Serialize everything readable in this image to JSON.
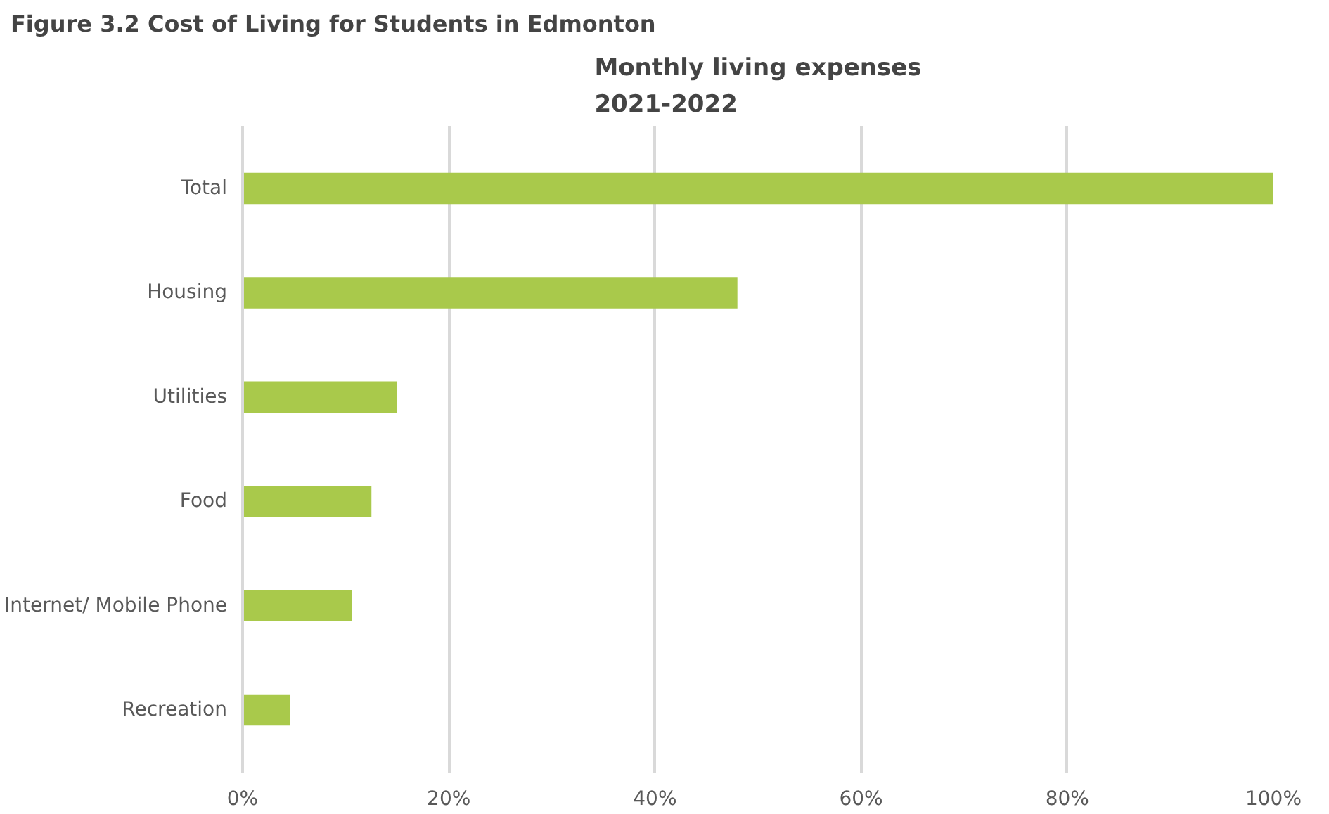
{
  "chart_data": {
    "type": "bar",
    "orientation": "horizontal",
    "title": "Monthly living expenses\n2021-2022",
    "annotations": [
      "Figure 3.2 Cost of Living for Students in Edmonton"
    ],
    "categories": [
      "Total",
      "Housing",
      "Utilities",
      "Food",
      "Internet/ Mobile Phone",
      "Recreation"
    ],
    "values": [
      100,
      48,
      15,
      12.5,
      10.6,
      4.6
    ],
    "color": "#a9c94b",
    "xlim": [
      0,
      100
    ],
    "xticks": [
      {
        "value": 0,
        "label": "0%"
      },
      {
        "value": 20,
        "label": "20%"
      },
      {
        "value": 40,
        "label": "40%"
      },
      {
        "value": 60,
        "label": "60%"
      },
      {
        "value": 80,
        "label": "80%"
      },
      {
        "value": 100,
        "label": "100%"
      }
    ],
    "grid": "x"
  }
}
